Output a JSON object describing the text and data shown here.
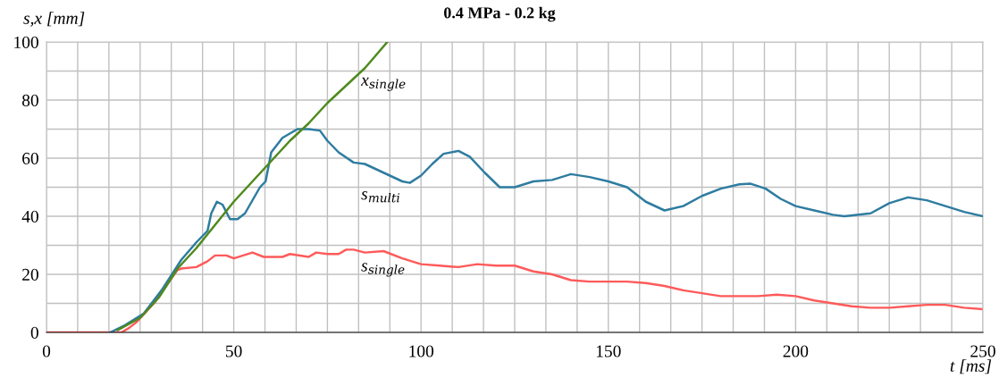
{
  "chart_data": {
    "type": "line",
    "title": "0.4 MPa - 0.2 kg",
    "xlabel": "t [ms]",
    "ylabel": "s,x [mm]",
    "xlim": [
      0,
      250
    ],
    "ylim": [
      0,
      100
    ],
    "xticks": [
      0,
      {
        "value": 8.33,
        "label": null
      },
      {
        "value": 16.67,
        "label": null
      },
      {
        "value": 25,
        "label": null
      },
      {
        "value": 33.33,
        "label": null
      },
      {
        "value": 41.67,
        "label": null
      },
      50,
      {
        "value": 58.33,
        "label": null
      },
      {
        "value": 66.67,
        "label": null
      },
      {
        "value": 75,
        "label": null
      },
      {
        "value": 83.33,
        "label": null
      },
      {
        "value": 91.67,
        "label": null
      },
      100,
      {
        "value": 108.33,
        "label": null
      },
      {
        "value": 116.67,
        "label": null
      },
      {
        "value": 125,
        "label": null
      },
      {
        "value": 133.33,
        "label": null
      },
      {
        "value": 141.67,
        "label": null
      },
      150,
      {
        "value": 158.33,
        "label": null
      },
      {
        "value": 166.67,
        "label": null
      },
      {
        "value": 175,
        "label": null
      },
      {
        "value": 183.33,
        "label": null
      },
      {
        "value": 191.67,
        "label": null
      },
      200,
      {
        "value": 208.33,
        "label": null
      },
      {
        "value": 216.67,
        "label": null
      },
      {
        "value": 225,
        "label": null
      },
      {
        "value": 233.33,
        "label": null
      },
      {
        "value": 241.67,
        "label": null
      },
      250
    ],
    "yticks": [
      0,
      {
        "value": 10,
        "label": null
      },
      20,
      {
        "value": 30,
        "label": null
      },
      40,
      {
        "value": 50,
        "label": null
      },
      60,
      {
        "value": 70,
        "label": null
      },
      80,
      {
        "value": 90,
        "label": null
      },
      100
    ],
    "grid": true,
    "legend": false,
    "marker": "none",
    "line_style": "solid",
    "series": [
      {
        "name": "s$_{multi}$",
        "color": "#2e7ca0",
        "x": [
          17,
          21,
          26,
          31,
          36,
          40,
          43,
          44,
          45.5,
          47,
          49,
          51,
          53,
          57,
          58.5,
          60,
          63,
          67,
          70,
          73,
          75,
          78,
          82,
          85,
          90,
          95,
          97,
          100,
          103,
          106,
          110,
          113,
          117,
          121,
          125,
          130,
          135,
          140,
          145,
          150,
          155,
          160,
          165,
          170,
          175,
          180,
          185,
          188,
          192,
          196,
          200,
          205,
          210,
          213,
          220,
          225,
          230,
          235,
          240,
          245,
          250
        ],
        "values": [
          0,
          2.5,
          6.5,
          15,
          25,
          31,
          35,
          41,
          45,
          44,
          39,
          39,
          41,
          50,
          52,
          62,
          67,
          70,
          70,
          69.5,
          66,
          62,
          58.5,
          58,
          55,
          52,
          51.5,
          54,
          58,
          61.5,
          62.5,
          60.5,
          55,
          50,
          50,
          52,
          52.5,
          54.5,
          53.5,
          52,
          50,
          45,
          42,
          43.5,
          47,
          49.5,
          51,
          51.2,
          49.5,
          46,
          43.5,
          42,
          40.5,
          40,
          41,
          44.5,
          46.5,
          45.5,
          43.5,
          41.5,
          40
        ]
      },
      {
        "name": "s$_{single}$",
        "color": "#ff5a5a",
        "x": [
          0,
          20,
          22,
          24,
          29,
          33,
          35,
          36,
          40,
          43,
          45,
          48,
          50,
          55,
          58,
          63,
          65,
          70,
          72,
          75,
          78,
          80,
          82,
          85,
          90,
          95,
          100,
          105,
          110,
          115,
          120,
          125,
          130,
          135,
          140,
          145,
          150,
          155,
          160,
          165,
          170,
          175,
          180,
          185,
          190,
          195,
          200,
          205,
          210,
          215,
          220,
          225,
          230,
          235,
          240,
          245,
          250
        ],
        "values": [
          0,
          0,
          1.5,
          3.5,
          10.5,
          18,
          21.5,
          22,
          22.5,
          24.5,
          26.5,
          26.5,
          25.5,
          27.5,
          26,
          26,
          27,
          26,
          27.5,
          27,
          27,
          28.5,
          28.5,
          27.5,
          28,
          25.5,
          23.5,
          23,
          22.5,
          23.5,
          23,
          23,
          21,
          20,
          18,
          17.5,
          17.5,
          17.5,
          17,
          16,
          14.5,
          13.5,
          12.5,
          12.5,
          12.5,
          13,
          12.5,
          11,
          10,
          9,
          8.5,
          8.5,
          9,
          9.5,
          9.5,
          8.5,
          8
        ]
      },
      {
        "name": "x$_{single}$",
        "color": "#4f8a1e",
        "x": [
          19,
          20,
          25,
          30,
          35,
          40,
          45,
          50,
          55,
          60,
          65,
          70,
          75,
          80,
          85,
          91
        ],
        "values": [
          0.8,
          1.5,
          5,
          12,
          22,
          29,
          37,
          45,
          52,
          59,
          66,
          72,
          79,
          85,
          91,
          100
        ]
      }
    ]
  }
}
